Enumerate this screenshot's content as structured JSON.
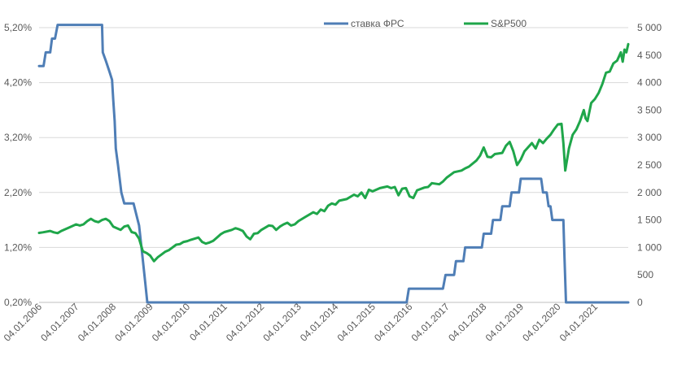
{
  "chart_data": {
    "type": "line",
    "title": "",
    "xlabel": "",
    "ylabel": "",
    "x_range": [
      2006.0,
      2021.9
    ],
    "y_left": {
      "range": [
        0.2,
        5.2
      ],
      "ticks": [
        0.2,
        1.2,
        2.2,
        3.2,
        4.2,
        5.2
      ],
      "tick_labels": [
        "0,20%",
        "1,20%",
        "2,20%",
        "3,20%",
        "4,20%",
        "5,20%"
      ]
    },
    "y_right": {
      "range": [
        0,
        5000
      ],
      "ticks": [
        0,
        500,
        1000,
        1500,
        2000,
        2500,
        3000,
        3500,
        4000,
        4500,
        5000
      ],
      "tick_labels": [
        "0",
        "500",
        "1 000",
        "1 500",
        "2 000",
        "2 500",
        "3 000",
        "3 500",
        "4 000",
        "4 500",
        "5 000"
      ]
    },
    "x_ticks": [
      2006,
      2007,
      2008,
      2009,
      2010,
      2011,
      2012,
      2013,
      2014,
      2015,
      2016,
      2017,
      2018,
      2019,
      2020,
      2021
    ],
    "x_tick_labels": [
      "04.01.2006",
      "04.01.2007",
      "04.01.2008",
      "04.01.2009",
      "04.01.2010",
      "04.01.2011",
      "04.01.2012",
      "04.01.2013",
      "04.01.2014",
      "04.01.2015",
      "04.01.2016",
      "04.01.2017",
      "04.01.2018",
      "04.01.2019",
      "04.01.2020",
      "04.01.2021"
    ],
    "grid": "horizontal",
    "legend": "top-center",
    "series": [
      {
        "name": "ставка ФРС",
        "axis": "left",
        "color": "#4f7eb6",
        "points": [
          [
            2006.0,
            4.5
          ],
          [
            2006.12,
            4.5
          ],
          [
            2006.18,
            4.75
          ],
          [
            2006.3,
            4.75
          ],
          [
            2006.35,
            5.0
          ],
          [
            2006.43,
            5.0
          ],
          [
            2006.5,
            5.25
          ],
          [
            2007.7,
            5.25
          ],
          [
            2007.72,
            4.75
          ],
          [
            2007.8,
            4.6
          ],
          [
            2007.9,
            4.4
          ],
          [
            2007.97,
            4.25
          ],
          [
            2008.0,
            3.9
          ],
          [
            2008.04,
            3.5
          ],
          [
            2008.07,
            3.0
          ],
          [
            2008.13,
            2.7
          ],
          [
            2008.22,
            2.2
          ],
          [
            2008.3,
            2.0
          ],
          [
            2008.55,
            2.0
          ],
          [
            2008.7,
            1.6
          ],
          [
            2008.78,
            1.1
          ],
          [
            2008.86,
            0.6
          ],
          [
            2008.92,
            0.2
          ],
          [
            2015.92,
            0.2
          ],
          [
            2015.98,
            0.45
          ],
          [
            2016.9,
            0.45
          ],
          [
            2016.97,
            0.7
          ],
          [
            2017.2,
            0.7
          ],
          [
            2017.25,
            0.95
          ],
          [
            2017.45,
            0.95
          ],
          [
            2017.5,
            1.2
          ],
          [
            2017.95,
            1.2
          ],
          [
            2018.0,
            1.45
          ],
          [
            2018.2,
            1.45
          ],
          [
            2018.25,
            1.7
          ],
          [
            2018.45,
            1.7
          ],
          [
            2018.5,
            1.95
          ],
          [
            2018.7,
            1.95
          ],
          [
            2018.75,
            2.2
          ],
          [
            2018.95,
            2.2
          ],
          [
            2019.0,
            2.45
          ],
          [
            2019.55,
            2.45
          ],
          [
            2019.6,
            2.2
          ],
          [
            2019.7,
            2.2
          ],
          [
            2019.75,
            1.95
          ],
          [
            2019.8,
            1.95
          ],
          [
            2019.85,
            1.7
          ],
          [
            2020.15,
            1.7
          ],
          [
            2020.18,
            1.0
          ],
          [
            2020.22,
            0.2
          ],
          [
            2021.9,
            0.2
          ]
        ]
      },
      {
        "name": "S&P500",
        "axis": "right",
        "color": "#1fa64a",
        "points": [
          [
            2006.0,
            1265
          ],
          [
            2006.1,
            1275
          ],
          [
            2006.3,
            1300
          ],
          [
            2006.4,
            1275
          ],
          [
            2006.5,
            1260
          ],
          [
            2006.6,
            1300
          ],
          [
            2006.8,
            1360
          ],
          [
            2007.0,
            1420
          ],
          [
            2007.1,
            1400
          ],
          [
            2007.2,
            1420
          ],
          [
            2007.3,
            1480
          ],
          [
            2007.4,
            1520
          ],
          [
            2007.5,
            1480
          ],
          [
            2007.6,
            1460
          ],
          [
            2007.7,
            1500
          ],
          [
            2007.8,
            1520
          ],
          [
            2007.9,
            1480
          ],
          [
            2008.0,
            1380
          ],
          [
            2008.1,
            1350
          ],
          [
            2008.2,
            1320
          ],
          [
            2008.3,
            1380
          ],
          [
            2008.4,
            1400
          ],
          [
            2008.5,
            1280
          ],
          [
            2008.6,
            1260
          ],
          [
            2008.7,
            1160
          ],
          [
            2008.8,
            930
          ],
          [
            2008.9,
            900
          ],
          [
            2009.0,
            850
          ],
          [
            2009.1,
            750
          ],
          [
            2009.2,
            820
          ],
          [
            2009.3,
            870
          ],
          [
            2009.4,
            920
          ],
          [
            2009.5,
            950
          ],
          [
            2009.6,
            1000
          ],
          [
            2009.7,
            1050
          ],
          [
            2009.8,
            1060
          ],
          [
            2009.9,
            1100
          ],
          [
            2010.0,
            1115
          ],
          [
            2010.1,
            1140
          ],
          [
            2010.3,
            1180
          ],
          [
            2010.4,
            1100
          ],
          [
            2010.5,
            1070
          ],
          [
            2010.6,
            1090
          ],
          [
            2010.7,
            1120
          ],
          [
            2010.8,
            1180
          ],
          [
            2010.9,
            1240
          ],
          [
            2011.0,
            1280
          ],
          [
            2011.2,
            1320
          ],
          [
            2011.3,
            1350
          ],
          [
            2011.4,
            1330
          ],
          [
            2011.5,
            1300
          ],
          [
            2011.6,
            1200
          ],
          [
            2011.7,
            1150
          ],
          [
            2011.8,
            1250
          ],
          [
            2011.9,
            1260
          ],
          [
            2012.0,
            1320
          ],
          [
            2012.2,
            1400
          ],
          [
            2012.3,
            1390
          ],
          [
            2012.4,
            1320
          ],
          [
            2012.5,
            1380
          ],
          [
            2012.6,
            1420
          ],
          [
            2012.7,
            1450
          ],
          [
            2012.8,
            1400
          ],
          [
            2012.9,
            1420
          ],
          [
            2013.0,
            1480
          ],
          [
            2013.2,
            1560
          ],
          [
            2013.4,
            1640
          ],
          [
            2013.5,
            1610
          ],
          [
            2013.6,
            1690
          ],
          [
            2013.7,
            1660
          ],
          [
            2013.8,
            1760
          ],
          [
            2013.9,
            1800
          ],
          [
            2014.0,
            1780
          ],
          [
            2014.1,
            1850
          ],
          [
            2014.3,
            1880
          ],
          [
            2014.5,
            1960
          ],
          [
            2014.6,
            1930
          ],
          [
            2014.7,
            2000
          ],
          [
            2014.8,
            1900
          ],
          [
            2014.9,
            2050
          ],
          [
            2015.0,
            2020
          ],
          [
            2015.2,
            2080
          ],
          [
            2015.4,
            2110
          ],
          [
            2015.5,
            2080
          ],
          [
            2015.6,
            2100
          ],
          [
            2015.7,
            1950
          ],
          [
            2015.8,
            2070
          ],
          [
            2015.9,
            2080
          ],
          [
            2016.0,
            1930
          ],
          [
            2016.1,
            1900
          ],
          [
            2016.2,
            2040
          ],
          [
            2016.4,
            2090
          ],
          [
            2016.5,
            2100
          ],
          [
            2016.6,
            2170
          ],
          [
            2016.8,
            2150
          ],
          [
            2016.9,
            2200
          ],
          [
            2017.0,
            2270
          ],
          [
            2017.2,
            2370
          ],
          [
            2017.4,
            2400
          ],
          [
            2017.5,
            2440
          ],
          [
            2017.6,
            2470
          ],
          [
            2017.8,
            2580
          ],
          [
            2017.9,
            2670
          ],
          [
            2018.0,
            2820
          ],
          [
            2018.1,
            2650
          ],
          [
            2018.2,
            2640
          ],
          [
            2018.3,
            2700
          ],
          [
            2018.5,
            2720
          ],
          [
            2018.6,
            2850
          ],
          [
            2018.7,
            2920
          ],
          [
            2018.8,
            2750
          ],
          [
            2018.9,
            2500
          ],
          [
            2019.0,
            2600
          ],
          [
            2019.1,
            2750
          ],
          [
            2019.3,
            2900
          ],
          [
            2019.4,
            2800
          ],
          [
            2019.5,
            2960
          ],
          [
            2019.6,
            2900
          ],
          [
            2019.7,
            2980
          ],
          [
            2019.8,
            3050
          ],
          [
            2019.9,
            3150
          ],
          [
            2020.0,
            3240
          ],
          [
            2020.1,
            3250
          ],
          [
            2020.15,
            2900
          ],
          [
            2020.2,
            2400
          ],
          [
            2020.3,
            2800
          ],
          [
            2020.4,
            3050
          ],
          [
            2020.5,
            3150
          ],
          [
            2020.6,
            3300
          ],
          [
            2020.7,
            3500
          ],
          [
            2020.75,
            3350
          ],
          [
            2020.8,
            3300
          ],
          [
            2020.9,
            3630
          ],
          [
            2021.0,
            3700
          ],
          [
            2021.1,
            3810
          ],
          [
            2021.2,
            3970
          ],
          [
            2021.3,
            4180
          ],
          [
            2021.4,
            4200
          ],
          [
            2021.5,
            4350
          ],
          [
            2021.6,
            4400
          ],
          [
            2021.7,
            4550
          ],
          [
            2021.75,
            4380
          ],
          [
            2021.8,
            4600
          ],
          [
            2021.85,
            4550
          ],
          [
            2021.9,
            4700
          ]
        ]
      }
    ]
  }
}
